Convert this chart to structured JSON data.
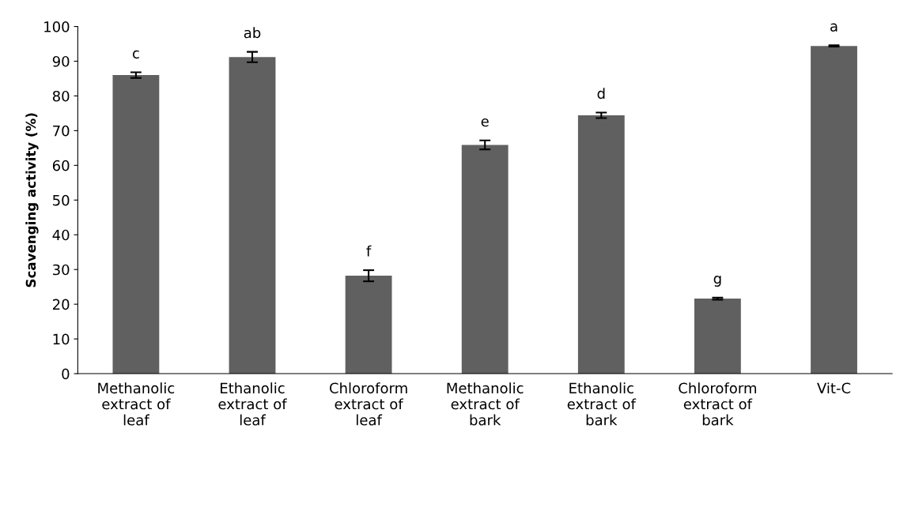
{
  "chart_data": {
    "type": "bar",
    "ylabel": "Scavenging activity (%)",
    "categories": [
      "Methanolic\nextract of\nleaf",
      "Ethanolic\nextract of\nleaf",
      "Chloroform\nextract of\nleaf",
      "Methanolic\nextract of\nbark",
      "Ethanolic\nextract of\nbark",
      "Chloroform\nextract of\nbark",
      "Vit-C"
    ],
    "values": [
      86.0,
      91.2,
      28.2,
      65.9,
      74.4,
      21.6,
      94.4
    ],
    "errors": [
      0.8,
      1.5,
      1.6,
      1.3,
      0.8,
      0.3,
      0.2
    ],
    "value_labels": [
      "c",
      "ab",
      "f",
      "e",
      "d",
      "g",
      "a"
    ],
    "color": "#606060",
    "ylim": [
      0,
      100
    ],
    "yticks": [
      0,
      10,
      20,
      30,
      40,
      50,
      60,
      70,
      80,
      90,
      100
    ],
    "grid": false,
    "legend": false
  }
}
